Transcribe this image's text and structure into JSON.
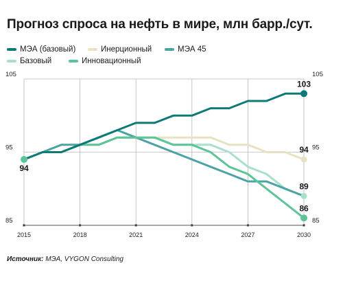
{
  "header": {
    "title": "Прогноз спроса на нефть в мире, млн барр./сут."
  },
  "footer": {
    "source_label": "Источник:",
    "source_text": "МЭА, VYGON Consulting"
  },
  "chart_data": {
    "type": "line",
    "title": "Прогноз спроса на нефть в мире, млн барр./сут.",
    "xlabel": "",
    "ylabel": "",
    "xlim": [
      2015,
      2030
    ],
    "ylim": [
      85,
      105
    ],
    "x_ticks": [
      2015,
      2018,
      2021,
      2024,
      2027,
      2030
    ],
    "y_ticks": [
      85,
      95,
      105
    ],
    "grid": true,
    "legend_position": "top",
    "x": [
      2015,
      2016,
      2017,
      2018,
      2019,
      2020,
      2021,
      2022,
      2023,
      2024,
      2025,
      2026,
      2027,
      2028,
      2029,
      2030
    ],
    "series": [
      {
        "name": "МЭА (базовый)",
        "color": "#0e7a78",
        "values": [
          94,
          95,
          95,
          96,
          97,
          98,
          99,
          99,
          100,
          100,
          101,
          101,
          102,
          102,
          103,
          103
        ]
      },
      {
        "name": "Инерционный",
        "color": "#e6e2c2",
        "values": [
          94,
          95,
          95,
          96,
          96,
          97,
          97,
          97,
          97,
          97,
          97,
          96,
          96,
          95,
          95,
          94
        ]
      },
      {
        "name": "МЭА 45",
        "color": "#4ba3a3",
        "values": [
          94,
          95,
          96,
          96,
          97,
          98,
          97,
          96,
          95,
          94,
          93,
          92,
          91,
          91,
          90,
          89
        ]
      },
      {
        "name": "Базовый",
        "color": "#a8e0cc",
        "values": [
          94,
          95,
          95,
          96,
          96,
          97,
          97,
          97,
          96,
          96,
          96,
          95,
          93,
          92,
          90,
          89
        ]
      },
      {
        "name": "Инновационный",
        "color": "#5cc496",
        "values": [
          94,
          95,
          95,
          96,
          96,
          97,
          97,
          97,
          96,
          96,
          95,
          93,
          92,
          90,
          88,
          86
        ]
      }
    ],
    "annotations": [
      {
        "label": "94",
        "x": 2015,
        "y": 94
      },
      {
        "label": "103",
        "x": 2030,
        "y": 103
      },
      {
        "label": "94",
        "x": 2030,
        "y": 94
      },
      {
        "label": "89",
        "x": 2030,
        "y": 89
      },
      {
        "label": "86",
        "x": 2030,
        "y": 86
      }
    ]
  }
}
